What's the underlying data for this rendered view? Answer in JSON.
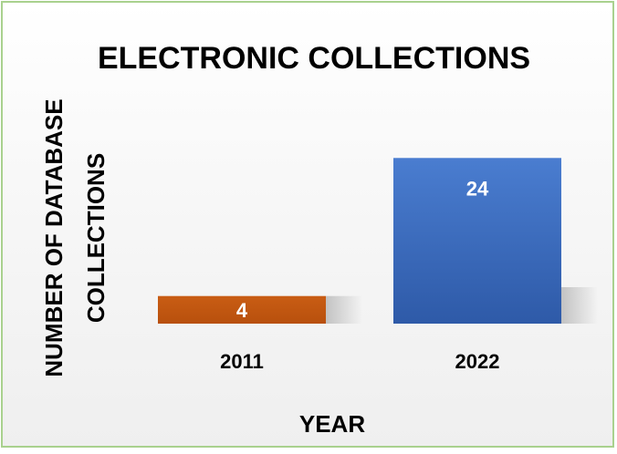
{
  "chart_data": {
    "type": "bar",
    "title": "ELECTRONIC COLLECTIONS",
    "xlabel": "YEAR",
    "ylabel_lines": [
      "NUMBER OF DATABASE",
      "COLLECTIONS"
    ],
    "categories": [
      "2011",
      "2022"
    ],
    "values": [
      4,
      24
    ],
    "data_labels": [
      "4",
      "24"
    ],
    "bar_colors": [
      "#c55a11",
      "#4472c4"
    ],
    "ylim": [
      0,
      28
    ],
    "grid": false,
    "legend": "none"
  },
  "colors": {
    "border": "#a9d18e",
    "background": "#f5f5f5"
  }
}
